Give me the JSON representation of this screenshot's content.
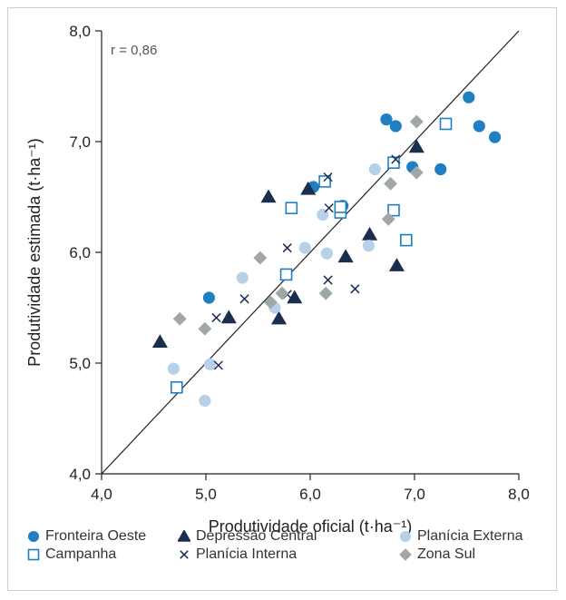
{
  "chart_data": {
    "type": "scatter",
    "title": "",
    "xlabel": "Produtividade oficial (t·ha⁻¹)",
    "ylabel": "Produtividade estimada (t·ha⁻¹)",
    "annotation": "r = 0,86",
    "xlim": [
      4.0,
      8.0
    ],
    "ylim": [
      4.0,
      8.0
    ],
    "x_ticks": [
      "4,0",
      "5,0",
      "6,0",
      "7,0",
      "8,0"
    ],
    "y_ticks": [
      "4,0",
      "5,0",
      "6,0",
      "7,0",
      "8,0"
    ],
    "reference_line": "1:1",
    "grid": false,
    "legend_position": "bottom",
    "series": [
      {
        "name": "Fronteira Oeste",
        "marker": "circle",
        "color": "#1f7fc1",
        "points": [
          [
            5.03,
            5.59
          ],
          [
            6.03,
            6.59
          ],
          [
            6.31,
            6.42
          ],
          [
            6.73,
            7.2
          ],
          [
            6.82,
            7.14
          ],
          [
            6.98,
            6.77
          ],
          [
            7.25,
            6.75
          ],
          [
            7.52,
            7.4
          ],
          [
            7.62,
            7.14
          ],
          [
            7.77,
            7.04
          ]
        ]
      },
      {
        "name": "Depressão Central",
        "marker": "triangle",
        "color": "#1a2e4f",
        "points": [
          [
            4.56,
            5.19
          ],
          [
            5.22,
            5.41
          ],
          [
            5.6,
            6.5
          ],
          [
            5.7,
            5.4
          ],
          [
            5.85,
            5.59
          ],
          [
            5.98,
            6.57
          ],
          [
            6.34,
            5.96
          ],
          [
            6.57,
            6.16
          ],
          [
            6.83,
            5.88
          ],
          [
            7.02,
            6.95
          ]
        ]
      },
      {
        "name": "Planícia Externa",
        "marker": "circle",
        "color": "#b7d1e8",
        "points": [
          [
            4.69,
            4.95
          ],
          [
            4.99,
            4.66
          ],
          [
            5.04,
            4.99
          ],
          [
            5.35,
            5.77
          ],
          [
            5.66,
            5.5
          ],
          [
            5.95,
            6.04
          ],
          [
            6.12,
            6.34
          ],
          [
            6.16,
            5.99
          ],
          [
            6.56,
            6.06
          ],
          [
            6.62,
            6.75
          ]
        ]
      },
      {
        "name": "Campanha",
        "marker": "square",
        "color": "#1f7fc1",
        "points": [
          [
            4.72,
            4.78
          ],
          [
            5.77,
            5.8
          ],
          [
            5.82,
            6.4
          ],
          [
            6.14,
            6.64
          ],
          [
            6.29,
            6.36
          ],
          [
            6.29,
            6.41
          ],
          [
            6.8,
            6.81
          ],
          [
            6.8,
            6.38
          ],
          [
            6.92,
            6.11
          ],
          [
            7.3,
            7.16
          ]
        ]
      },
      {
        "name": "Planícia Interna",
        "marker": "x",
        "color": "#1a2e4f",
        "points": [
          [
            5.1,
            5.41
          ],
          [
            5.12,
            4.98
          ],
          [
            5.37,
            5.58
          ],
          [
            5.78,
            6.04
          ],
          [
            5.78,
            5.62
          ],
          [
            6.17,
            6.68
          ],
          [
            6.17,
            5.75
          ],
          [
            6.18,
            6.4
          ],
          [
            6.43,
            5.67
          ],
          [
            6.82,
            6.84
          ]
        ]
      },
      {
        "name": "Zona Sul",
        "marker": "diamond",
        "color": "#9fa8a6",
        "points": [
          [
            4.75,
            5.4
          ],
          [
            4.99,
            5.31
          ],
          [
            5.52,
            5.95
          ],
          [
            5.62,
            5.55
          ],
          [
            5.73,
            5.63
          ],
          [
            6.15,
            5.63
          ],
          [
            6.75,
            6.3
          ],
          [
            6.77,
            6.62
          ],
          [
            7.02,
            6.72
          ],
          [
            7.02,
            7.18
          ]
        ]
      }
    ]
  }
}
